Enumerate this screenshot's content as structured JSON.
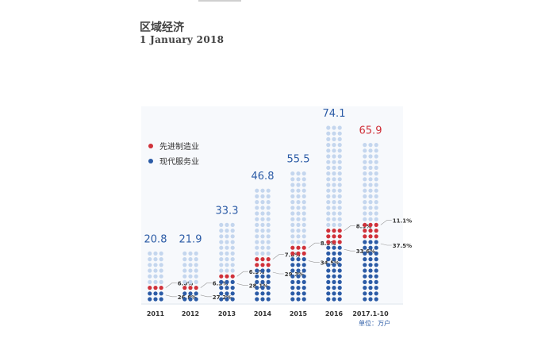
{
  "title": "区域经济",
  "subtitle": "1 January 2018",
  "unit_label": "单位：万户",
  "legend": [
    {
      "name": "先进制造业",
      "color": "#d0313a"
    },
    {
      "name": "现代服务业",
      "color": "#2b5ba6"
    }
  ],
  "chart_data": {
    "type": "bar",
    "categories": [
      "2011",
      "2012",
      "2013",
      "2014",
      "2015",
      "2016",
      "2017.1-10"
    ],
    "totals": [
      20.8,
      21.9,
      33.3,
      46.8,
      55.5,
      74.1,
      65.9
    ],
    "total_labels": [
      "20.8",
      "21.9",
      "33.3",
      "46.8",
      "55.5",
      "74.1",
      "65.9"
    ],
    "series": [
      {
        "name": "先进制造业",
        "color": "#d0313a",
        "share_labels": [
          "6.0%",
          "6.3%",
          "6.5%",
          "7.8%",
          "8.3%",
          "8.5%",
          "11.1%"
        ],
        "shares": [
          6.0,
          6.3,
          6.5,
          7.8,
          8.3,
          8.5,
          11.1
        ]
      },
      {
        "name": "现代服务业",
        "color": "#2b5ba6",
        "share_labels": [
          "26.8%",
          "27.2%",
          "28.1%",
          "29.3%",
          "34.5%",
          "33.6%",
          "37.5%"
        ],
        "shares": [
          26.8,
          27.2,
          28.1,
          29.3,
          34.5,
          33.6,
          37.5
        ]
      }
    ],
    "highlight_total_color": "#d0313a",
    "total_color": "#2b5ba6",
    "other_color": "#c4d6ee"
  }
}
